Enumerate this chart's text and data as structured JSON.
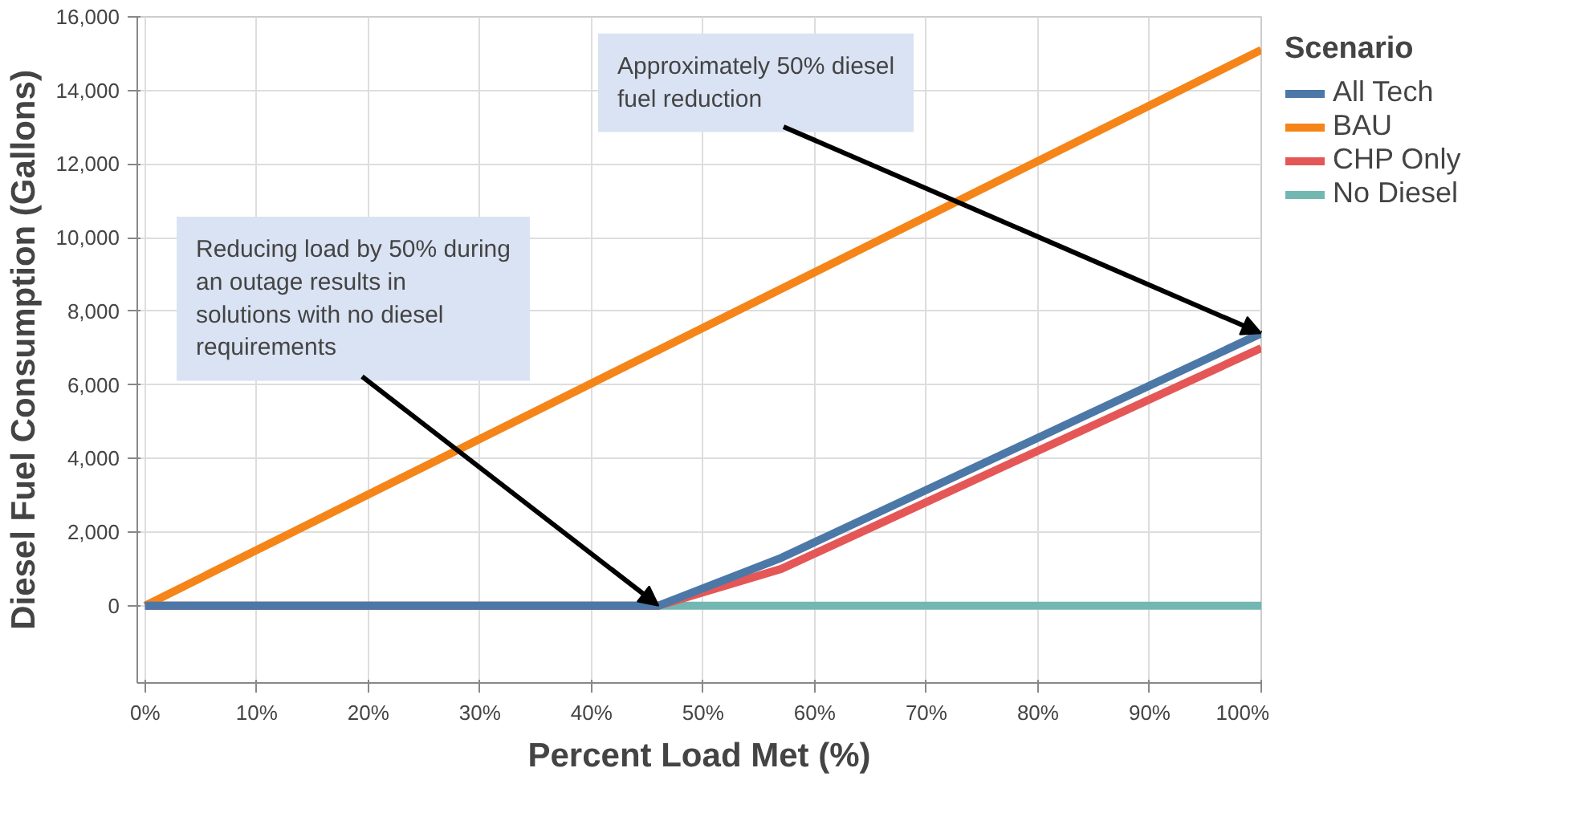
{
  "chart_data": {
    "type": "line",
    "xlabel": "Percent Load Met (%)",
    "ylabel": "Diesel Fuel Consumption (Gallons)",
    "legend_title": "Scenario",
    "xlim": [
      -0.7,
      100
    ],
    "ylim": [
      -2100,
      16000
    ],
    "xticks": [
      {
        "value": 0,
        "label": "0%"
      },
      {
        "value": 10,
        "label": "10%"
      },
      {
        "value": 20,
        "label": "20%"
      },
      {
        "value": 30,
        "label": "30%"
      },
      {
        "value": 40,
        "label": "40%"
      },
      {
        "value": 50,
        "label": "50%"
      },
      {
        "value": 60,
        "label": "60%"
      },
      {
        "value": 70,
        "label": "70%"
      },
      {
        "value": 80,
        "label": "80%"
      },
      {
        "value": 90,
        "label": "90%"
      },
      {
        "value": 100,
        "label": "100%"
      }
    ],
    "yticks": [
      0,
      {
        "value": 2000,
        "label": "2,000"
      },
      {
        "value": 4000,
        "label": "4,000"
      },
      {
        "value": 6000,
        "label": "6,000"
      },
      {
        "value": 8000,
        "label": "8,000"
      },
      {
        "value": 10000,
        "label": "10,000"
      },
      {
        "value": 12000,
        "label": "12,000"
      },
      {
        "value": 14000,
        "label": "14,000"
      },
      {
        "value": 16000,
        "label": "16,000"
      }
    ],
    "grid": true,
    "legend": "right",
    "marker": "none",
    "line_style": "solid",
    "series": [
      {
        "name": "BAU",
        "color": "#f58518",
        "x": [
          0,
          100
        ],
        "values": [
          0,
          15100
        ]
      },
      {
        "name": "No Diesel",
        "color": "#72b7b2",
        "x": [
          0,
          100
        ],
        "values": [
          0,
          0
        ]
      },
      {
        "name": "CHP Only",
        "color": "#e45756",
        "x": [
          0,
          46,
          57,
          100
        ],
        "values": [
          0,
          0,
          1000,
          7000
        ]
      },
      {
        "name": "All Tech",
        "color": "#4c78a8",
        "x": [
          0,
          46,
          57,
          100
        ],
        "values": [
          0,
          0,
          1300,
          7400
        ]
      }
    ],
    "annotations": [
      {
        "text": "Reducing load by 50% during an outage results in solutions with no diesel requirements",
        "x": 46,
        "y": 0
      },
      {
        "text": "Approximately 50% diesel fuel reduction",
        "x": 100,
        "y": 7400
      }
    ]
  }
}
